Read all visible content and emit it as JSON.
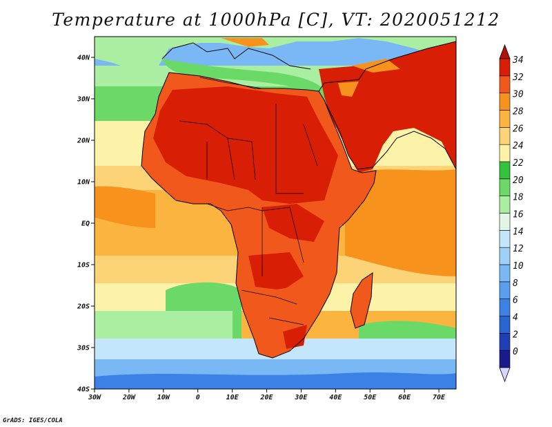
{
  "title": "Temperature at 1000hPa [C], VT: 2020051212",
  "credit": "GrADS: IGES/COLA",
  "map": {
    "lon_range": [
      -30,
      75
    ],
    "lat_range": [
      -40,
      45
    ],
    "lat_ticks": [
      {
        "value": 40,
        "label": "40N"
      },
      {
        "value": 30,
        "label": "30N"
      },
      {
        "value": 20,
        "label": "20N"
      },
      {
        "value": 10,
        "label": "10N"
      },
      {
        "value": 0,
        "label": "EQ"
      },
      {
        "value": -10,
        "label": "10S"
      },
      {
        "value": -20,
        "label": "20S"
      },
      {
        "value": -30,
        "label": "30S"
      },
      {
        "value": -40,
        "label": "40S"
      }
    ],
    "lon_ticks": [
      {
        "value": -30,
        "label": "30W"
      },
      {
        "value": -20,
        "label": "20W"
      },
      {
        "value": -10,
        "label": "10W"
      },
      {
        "value": 0,
        "label": "0"
      },
      {
        "value": 10,
        "label": "10E"
      },
      {
        "value": 20,
        "label": "20E"
      },
      {
        "value": 30,
        "label": "30E"
      },
      {
        "value": 40,
        "label": "40E"
      },
      {
        "value": 50,
        "label": "50E"
      },
      {
        "value": 60,
        "label": "60E"
      },
      {
        "value": 70,
        "label": "70E"
      }
    ]
  },
  "colorbar": {
    "levels": [
      {
        "label": "0",
        "color": "#1a1a8c"
      },
      {
        "label": "2",
        "color": "#1f3fb4"
      },
      {
        "label": "4",
        "color": "#2a63d2"
      },
      {
        "label": "6",
        "color": "#3c82e6"
      },
      {
        "label": "8",
        "color": "#5a9eef"
      },
      {
        "label": "10",
        "color": "#7ab8f5"
      },
      {
        "label": "12",
        "color": "#9fd0f8"
      },
      {
        "label": "14",
        "color": "#c4e6fb"
      },
      {
        "label": "16",
        "color": "#e2f6e6"
      },
      {
        "label": "18",
        "color": "#aaeea2"
      },
      {
        "label": "20",
        "color": "#6ad967"
      },
      {
        "label": "22",
        "color": "#33c43c"
      },
      {
        "label": "24",
        "color": "#fdf3a8"
      },
      {
        "label": "26",
        "color": "#fcd477"
      },
      {
        "label": "28",
        "color": "#fbb43f"
      },
      {
        "label": "30",
        "color": "#f7931c"
      },
      {
        "label": "32",
        "color": "#f0591b"
      },
      {
        "label": "34",
        "color": "#d81e05"
      }
    ],
    "under_color": "#d8d6ff",
    "over_color": "#b0120a"
  }
}
